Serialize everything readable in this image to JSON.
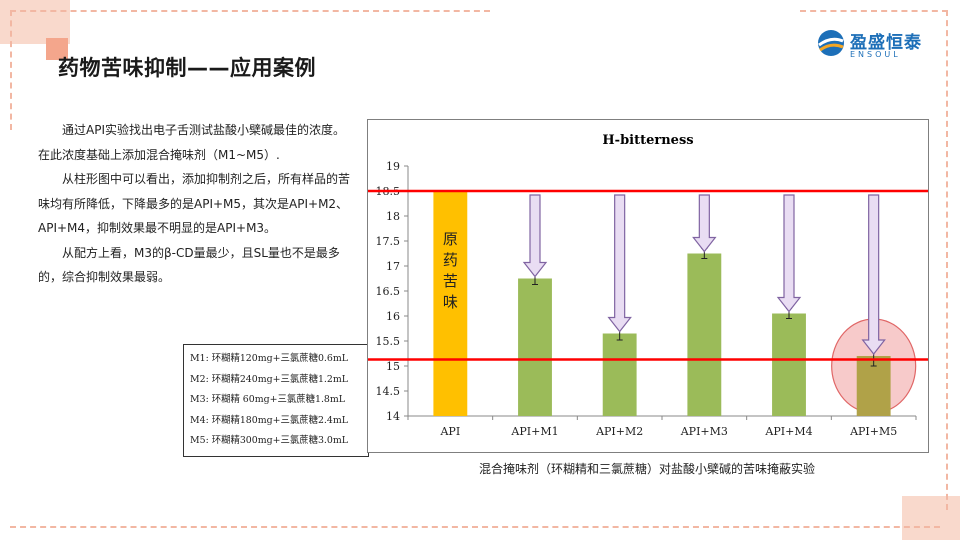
{
  "header": {
    "title": "药物苦味抑制——应用案例",
    "logo_cn": "盈盛恒泰",
    "logo_en": "ENSOUL"
  },
  "body": {
    "paragraphs": [
      "通过API实验找出电子舌测试盐酸小檗碱最佳的浓度。在此浓度基础上添加混合掩味剂（M1~M5）.",
      "从柱形图中可以看出，添加抑制剂之后，所有样品的苦味均有所降低，下降最多的是API+M5，其次是API+M2、API+M4，抑制效果最不明显的是API+M3。",
      "从配方上看，M3的β-CD量最少，且SL量也不是最多的，综合抑制效果最弱。"
    ]
  },
  "legend": {
    "items": [
      "M1: 环糊精120mg+三氯蔗糖0.6mL",
      "M2: 环糊精240mg+三氯蔗糖1.2mL",
      "M3: 环糊精 60mg+三氯蔗糖1.8mL",
      "M4: 环糊精180mg+三氯蔗糖2.4mL",
      "M5: 环糊精300mg+三氯蔗糖3.0mL"
    ]
  },
  "chart_data": {
    "type": "bar",
    "title": "H-bitterness",
    "categories": [
      "API",
      "API+M1",
      "API+M2",
      "API+M3",
      "API+M4",
      "API+M5"
    ],
    "values": [
      18.5,
      16.75,
      15.65,
      17.25,
      16.05,
      15.2
    ],
    "error": [
      0,
      0.12,
      0.13,
      0.1,
      0.1,
      0.2
    ],
    "ylim": [
      14,
      19
    ],
    "yticks": [
      14,
      14.5,
      15,
      15.5,
      16,
      16.5,
      17,
      17.5,
      18,
      18.5,
      19
    ],
    "grid": false,
    "reference_lines": [
      18.5,
      15.13
    ],
    "bar_label": "原药苦味",
    "colors": {
      "api": "#ffc000",
      "treated": "#9bbb59",
      "best": "#b0a248",
      "reference_line": "#ff0000",
      "arrow_fill": "#e9ddf3",
      "arrow_stroke": "#8064a2",
      "highlight": "#f4b8b8"
    },
    "caption": "混合掩味剂（环糊精和三氯蔗糖）对盐酸小檗碱的苦味掩蔽实验"
  }
}
